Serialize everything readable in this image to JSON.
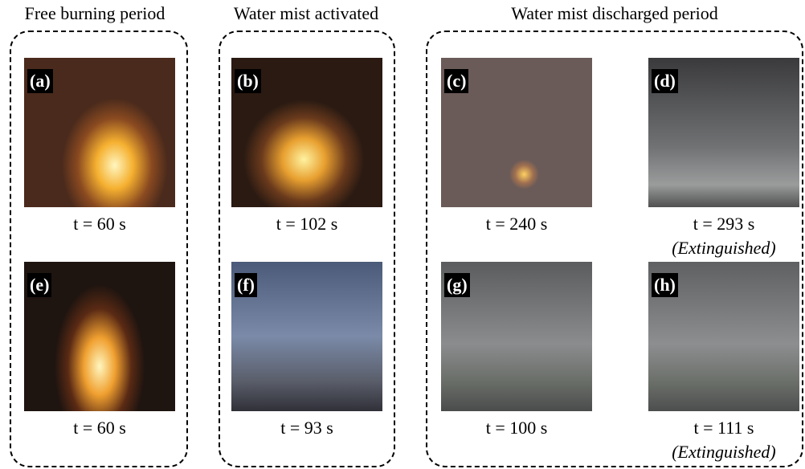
{
  "headers": [
    "Free burning period",
    "Water mist activated",
    "Water mist discharged period"
  ],
  "panels": [
    {
      "label": "(a)",
      "caption": "t = 60 s"
    },
    {
      "label": "(b)",
      "caption": "t = 102 s"
    },
    {
      "label": "(c)",
      "caption": "t = 240 s"
    },
    {
      "label": "(d)",
      "caption": "t = 293 s",
      "note": "(Extinguished)"
    },
    {
      "label": "(e)",
      "caption": "t = 60 s"
    },
    {
      "label": "(f)",
      "caption": "t = 93 s"
    },
    {
      "label": "(g)",
      "caption": "t = 100 s"
    },
    {
      "label": "(h)",
      "caption": "t = 111 s",
      "note": "(Extinguished)"
    }
  ]
}
